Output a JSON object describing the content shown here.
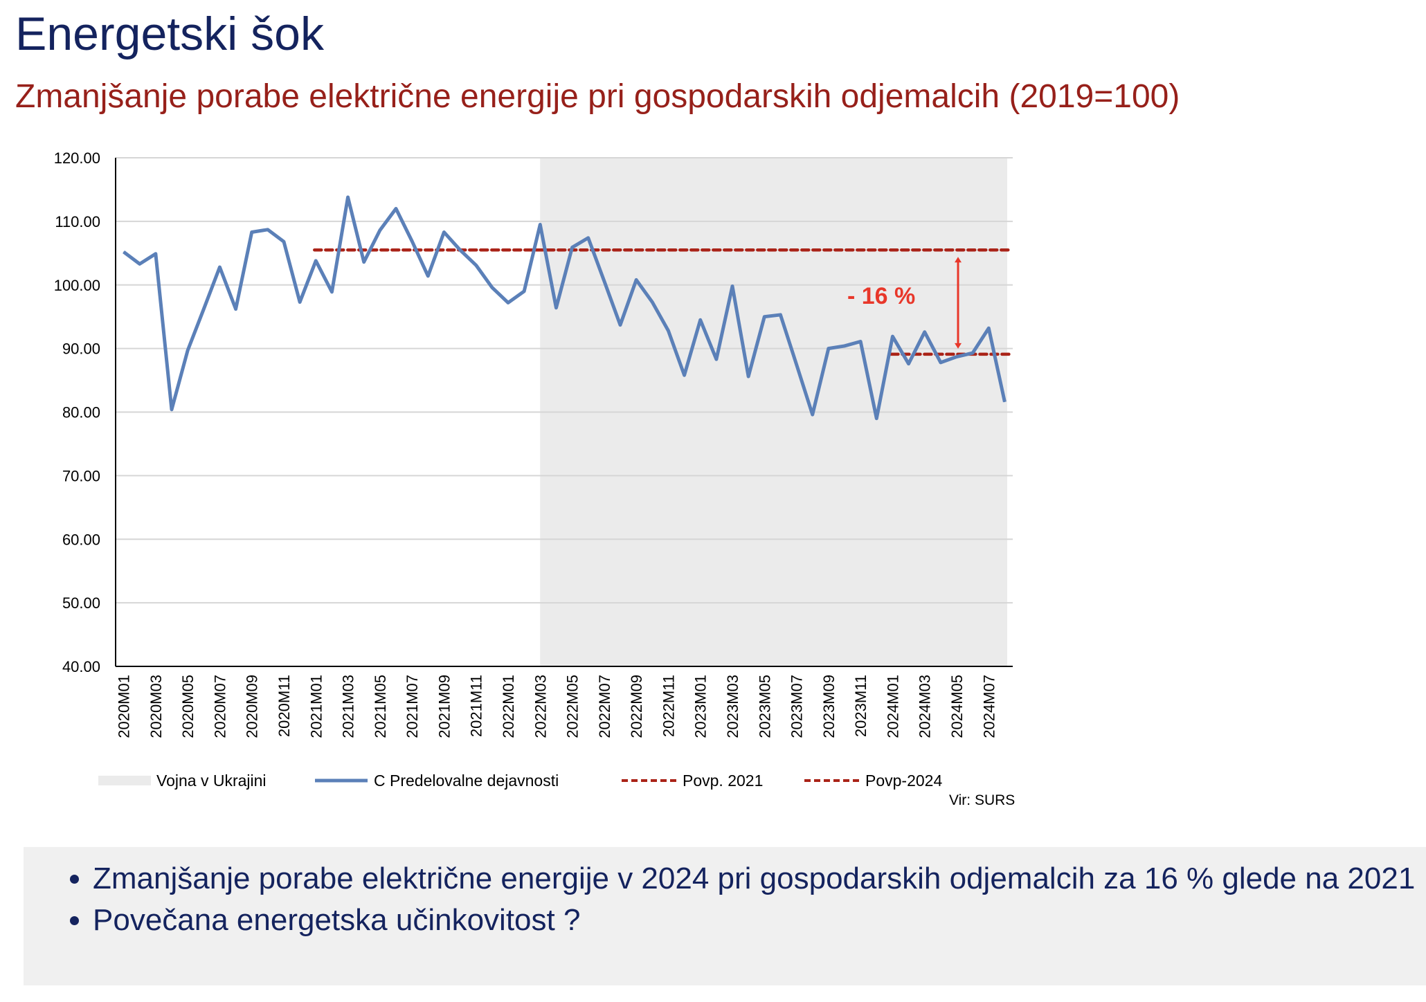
{
  "title": "Energetski šok",
  "subtitle": "Zmanjšanje porabe električne energije pri gospodarskih odjemalcih (2019=100)",
  "source": "Vir: SURS",
  "bullets": [
    "Zmanjšanje porabe električne energije v 2024 pri gospodarskih odjemalcih za 16 % glede na 2021",
    "Povečana energetska učinkovitost ?"
  ],
  "colors": {
    "line": "#5b80b8",
    "avg": "#aa2318",
    "shade": "#ebebeb",
    "annotation": "#e8372a"
  },
  "chart_data": {
    "type": "line",
    "title": "",
    "ylim": [
      40,
      120
    ],
    "yticks": [
      "40.00",
      "50.00",
      "60.00",
      "70.00",
      "80.00",
      "90.00",
      "100.00",
      "110.00",
      "120.00"
    ],
    "grid": true,
    "legend_placement": "bottom",
    "x": [
      "2020M01",
      "2020M02",
      "2020M03",
      "2020M04",
      "2020M05",
      "2020M06",
      "2020M07",
      "2020M08",
      "2020M09",
      "2020M10",
      "2020M11",
      "2020M12",
      "2021M01",
      "2021M02",
      "2021M03",
      "2021M04",
      "2021M05",
      "2021M06",
      "2021M07",
      "2021M08",
      "2021M09",
      "2021M10",
      "2021M11",
      "2021M12",
      "2022M01",
      "2022M02",
      "2022M03",
      "2022M04",
      "2022M05",
      "2022M06",
      "2022M07",
      "2022M08",
      "2022M09",
      "2022M10",
      "2022M11",
      "2022M12",
      "2023M01",
      "2023M02",
      "2023M03",
      "2023M04",
      "2023M05",
      "2023M06",
      "2023M07",
      "2023M08",
      "2023M09",
      "2023M10",
      "2023M11",
      "2023M12",
      "2024M01",
      "2024M02",
      "2024M03",
      "2024M04",
      "2024M05",
      "2024M06",
      "2024M07",
      "2024M08"
    ],
    "series": [
      {
        "name": "C Predelovalne dejavnosti",
        "values": [
          105.2,
          103.3,
          104.9,
          80.4,
          89.7,
          96.2,
          102.8,
          96.2,
          108.3,
          108.7,
          106.8,
          97.3,
          103.8,
          98.9,
          113.8,
          103.6,
          108.6,
          112.0,
          106.9,
          101.4,
          108.3,
          105.5,
          103.1,
          99.6,
          97.2,
          99.0,
          109.5,
          96.4,
          105.9,
          107.4,
          100.6,
          93.7,
          100.8,
          97.3,
          92.8,
          85.8,
          94.5,
          88.3,
          99.8,
          85.6,
          95.0,
          95.3,
          87.5,
          79.6,
          90.0,
          90.4,
          91.1,
          79.0,
          91.9,
          87.6,
          92.6,
          87.8,
          88.7,
          89.3,
          93.2,
          81.6
        ]
      },
      {
        "name": "Povp. 2021",
        "value": 105.5,
        "from": "2021M01",
        "to": "2024M08"
      },
      {
        "name": "Povp-2024",
        "value": 89.1,
        "from": "2024M01",
        "to": "2024M08"
      }
    ],
    "shaded_region": {
      "name": "Vojna v Ukrajini",
      "from": "2022M03",
      "to": "2024M08"
    },
    "annotation": {
      "text": "- 16 %",
      "from_value": 105.5,
      "to_value": 89.1,
      "at": "2024M05"
    }
  }
}
